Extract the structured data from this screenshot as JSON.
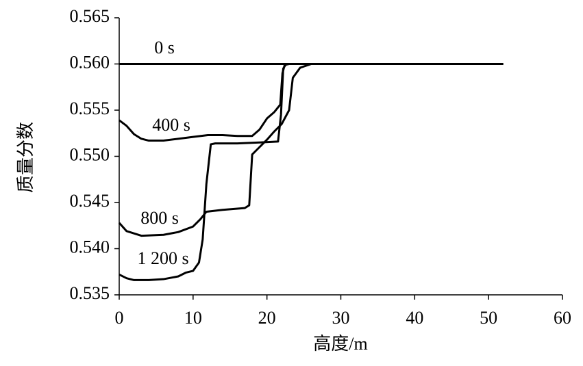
{
  "chart_data": {
    "type": "line",
    "x_label": "高度/m",
    "y_label": "质量分数",
    "xlim": [
      0,
      60
    ],
    "xticks": [
      0,
      10,
      20,
      30,
      40,
      50,
      60
    ],
    "ylim": [
      0.535,
      0.565
    ],
    "yticks": [
      0.535,
      {
        "value": 0.54,
        "label": "0.540"
      },
      0.545,
      {
        "value": 0.55,
        "label": "0.550"
      },
      0.555,
      {
        "value": 0.56,
        "label": "0.560"
      },
      0.565
    ],
    "grid": false,
    "series": [
      {
        "name": "0 s",
        "color": "#000000",
        "x": [
          0,
          52
        ],
        "values": [
          0.56,
          0.56
        ]
      },
      {
        "name": "400 s",
        "color": "#000000",
        "x": [
          0,
          1,
          2,
          3,
          4,
          6,
          8,
          10,
          12,
          14,
          16,
          18,
          19,
          20,
          21,
          21.8,
          22.1,
          22.4,
          23,
          26
        ],
        "values": [
          0.5539,
          0.5533,
          0.5524,
          0.5519,
          0.5517,
          0.5517,
          0.5519,
          0.5521,
          0.5523,
          0.5523,
          0.5522,
          0.5522,
          0.5529,
          0.5541,
          0.5548,
          0.5556,
          0.559,
          0.5599,
          0.56,
          0.56
        ]
      },
      {
        "name": "800 s",
        "color": "#000000",
        "x": [
          0,
          1,
          3,
          6,
          8,
          10,
          11,
          11.8,
          14,
          17,
          17.6,
          18,
          19,
          20,
          21,
          22,
          23,
          23.5,
          24.5,
          26
        ],
        "values": [
          0.5428,
          0.5419,
          0.5414,
          0.5415,
          0.5418,
          0.5424,
          0.5432,
          0.544,
          0.5442,
          0.5444,
          0.5447,
          0.5502,
          0.551,
          0.5518,
          0.5527,
          0.5535,
          0.555,
          0.5585,
          0.5596,
          0.56
        ]
      },
      {
        "name": "1 200 s",
        "color": "#000000",
        "x": [
          0,
          1,
          2,
          4,
          6,
          8,
          9,
          10,
          10.8,
          11.3,
          11.8,
          12.4,
          13,
          16,
          19,
          21.5,
          21.9,
          22.2,
          22.6,
          25
        ],
        "values": [
          0.5372,
          0.5368,
          0.5366,
          0.5366,
          0.5367,
          0.537,
          0.5374,
          0.5376,
          0.5385,
          0.541,
          0.547,
          0.5513,
          0.5514,
          0.5514,
          0.5515,
          0.5516,
          0.5545,
          0.5595,
          0.56,
          0.56
        ]
      }
    ]
  }
}
